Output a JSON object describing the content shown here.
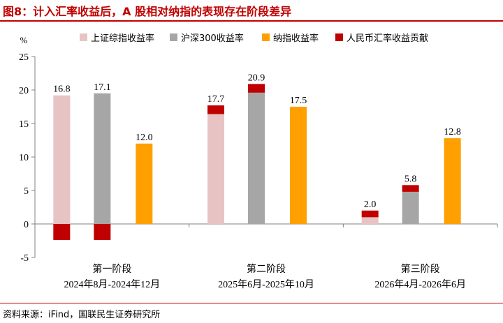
{
  "figure_title": "图8：计入汇率收益后，A 股相对纳指的表现存在阶段差异",
  "source_note": "资料来源：iFind，国联民生证券研究所",
  "colors": {
    "brand_red": "#c00000",
    "sse": "#e8c3c3",
    "csi300": "#a6a6a6",
    "nasdaq": "#ffa000",
    "rmb": "#c00000",
    "axis": "#808080"
  },
  "chart_data": {
    "type": "bar",
    "ylabel": "%",
    "ylim": [
      -5,
      25
    ],
    "yticks": [
      -5,
      0,
      5,
      10,
      15,
      20,
      25
    ],
    "grid": false,
    "legend_position": "top",
    "stacked_component": "人民币汇率收益贡献",
    "categories": [
      {
        "name": "第一阶段",
        "period": "2024年8月-2024年12月"
      },
      {
        "name": "第二阶段",
        "period": "2025年6月-2025年10月"
      },
      {
        "name": "第三阶段",
        "period": "2026年4月-2026年6月"
      }
    ],
    "series": [
      {
        "name": "上证综指收益率",
        "color": "#e8c3c3",
        "values": [
          19.2,
          16.4,
          1.0
        ]
      },
      {
        "name": "沪深300收益率",
        "color": "#a6a6a6",
        "values": [
          19.5,
          19.6,
          4.8
        ]
      },
      {
        "name": "纳指收益率",
        "color": "#ffa000",
        "values": [
          12.0,
          17.5,
          12.8
        ]
      },
      {
        "name": "人民币汇率收益贡献",
        "color": "#c00000",
        "values": [
          -2.4,
          1.3,
          1.0
        ]
      }
    ],
    "totals_labels": [
      [
        "16.8",
        "17.1",
        "12.0"
      ],
      [
        "17.7",
        "20.9",
        "17.5"
      ],
      [
        "2.0",
        "5.8",
        "12.8"
      ]
    ]
  }
}
